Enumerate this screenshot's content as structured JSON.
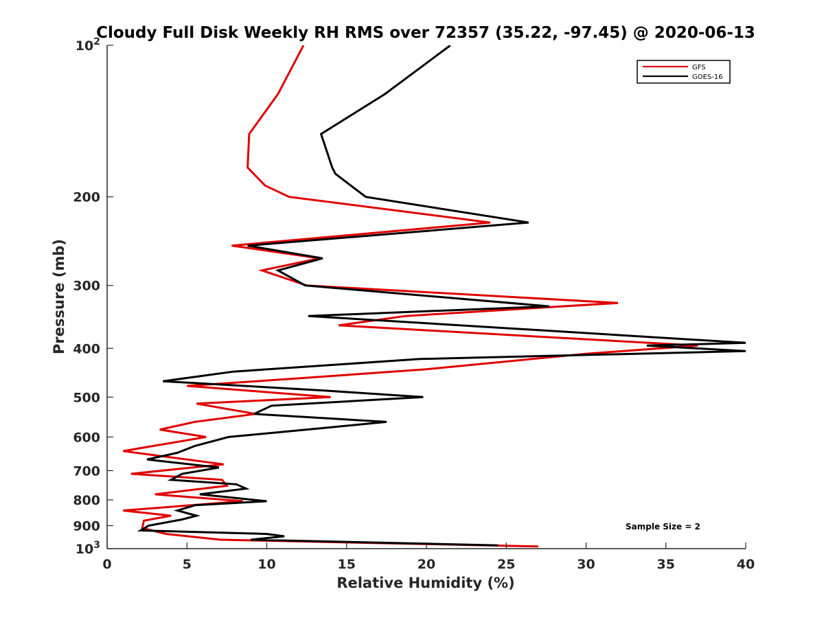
{
  "chart_data": {
    "type": "line",
    "title": "Cloudy Full Disk Weekly RH RMS over 72357 (35.22, -97.45) @ 2020-06-13",
    "xlabel": "Relative Humidity (%)",
    "ylabel": "Pressure (mb)",
    "xlim": [
      0,
      40
    ],
    "ylim": [
      100,
      1000
    ],
    "yscale": "log",
    "y_reversed": true,
    "xticks": [
      0,
      5,
      10,
      15,
      20,
      25,
      30,
      35,
      40
    ],
    "xtick_labels": [
      "0",
      "5",
      "10",
      "15",
      "20",
      "25",
      "30",
      "35",
      "40"
    ],
    "yticks": [
      {
        "value": 100,
        "base": "10",
        "exp": "2"
      },
      {
        "value": 200,
        "label": "200"
      },
      {
        "value": 300,
        "label": "300"
      },
      {
        "value": 400,
        "label": "400"
      },
      {
        "value": 500,
        "label": "500"
      },
      {
        "value": 600,
        "label": "600"
      },
      {
        "value": 700,
        "label": "700"
      },
      {
        "value": 800,
        "label": "800"
      },
      {
        "value": 900,
        "label": "900"
      },
      {
        "value": 1000,
        "base": "10",
        "exp": "3"
      }
    ],
    "legend_position": "top-right",
    "annotation": "Sample Size = 2",
    "series": [
      {
        "name": "GFS",
        "color": "#e00000",
        "points": [
          [
            12.3,
            100
          ],
          [
            10.7,
            125
          ],
          [
            8.9,
            150
          ],
          [
            8.8,
            175
          ],
          [
            9.9,
            190
          ],
          [
            11.4,
            200
          ],
          [
            24.0,
            225
          ],
          [
            7.8,
            250
          ],
          [
            13.3,
            265
          ],
          [
            9.7,
            280
          ],
          [
            12.5,
            300
          ],
          [
            32.0,
            325
          ],
          [
            18.7,
            345
          ],
          [
            14.5,
            360
          ],
          [
            37.0,
            395
          ],
          [
            30.0,
            410
          ],
          [
            20.0,
            440
          ],
          [
            11.5,
            460
          ],
          [
            5.0,
            475
          ],
          [
            14.0,
            500
          ],
          [
            5.6,
            515
          ],
          [
            9.3,
            540
          ],
          [
            5.5,
            560
          ],
          [
            3.3,
            580
          ],
          [
            6.2,
            600
          ],
          [
            1.0,
            640
          ],
          [
            7.3,
            680
          ],
          [
            1.5,
            710
          ],
          [
            7.2,
            730
          ],
          [
            7.5,
            750
          ],
          [
            3.0,
            780
          ],
          [
            8.5,
            805
          ],
          [
            1.0,
            840
          ],
          [
            4.0,
            860
          ],
          [
            2.3,
            880
          ],
          [
            2.2,
            910
          ],
          [
            3.7,
            935
          ],
          [
            7.1,
            960
          ],
          [
            27.0,
            990
          ]
        ]
      },
      {
        "name": "GOES-16",
        "color": "#000000",
        "points": [
          [
            21.5,
            100
          ],
          [
            17.4,
            125
          ],
          [
            13.4,
            150
          ],
          [
            14.1,
            175
          ],
          [
            14.3,
            180
          ],
          [
            16.2,
            200
          ],
          [
            26.4,
            225
          ],
          [
            8.8,
            250
          ],
          [
            13.5,
            265
          ],
          [
            10.7,
            280
          ],
          [
            12.4,
            300
          ],
          [
            27.7,
            330
          ],
          [
            12.6,
            345
          ],
          [
            40.0,
            390
          ],
          [
            33.8,
            395
          ],
          [
            40.0,
            405
          ],
          [
            19.6,
            420
          ],
          [
            7.9,
            445
          ],
          [
            3.5,
            465
          ],
          [
            13.5,
            485
          ],
          [
            19.8,
            500
          ],
          [
            10.3,
            520
          ],
          [
            9.2,
            540
          ],
          [
            17.5,
            560
          ],
          [
            13.8,
            575
          ],
          [
            7.6,
            600
          ],
          [
            5.5,
            625
          ],
          [
            4.4,
            645
          ],
          [
            2.5,
            665
          ],
          [
            7.0,
            690
          ],
          [
            4.7,
            710
          ],
          [
            4.0,
            730
          ],
          [
            8.1,
            745
          ],
          [
            8.7,
            760
          ],
          [
            5.8,
            780
          ],
          [
            10.0,
            805
          ],
          [
            5.5,
            820
          ],
          [
            4.4,
            840
          ],
          [
            5.6,
            860
          ],
          [
            4.7,
            875
          ],
          [
            2.6,
            900
          ],
          [
            2.1,
            920
          ],
          [
            10.0,
            935
          ],
          [
            11.1,
            945
          ],
          [
            9.0,
            960
          ],
          [
            24.5,
            985
          ]
        ]
      }
    ]
  }
}
